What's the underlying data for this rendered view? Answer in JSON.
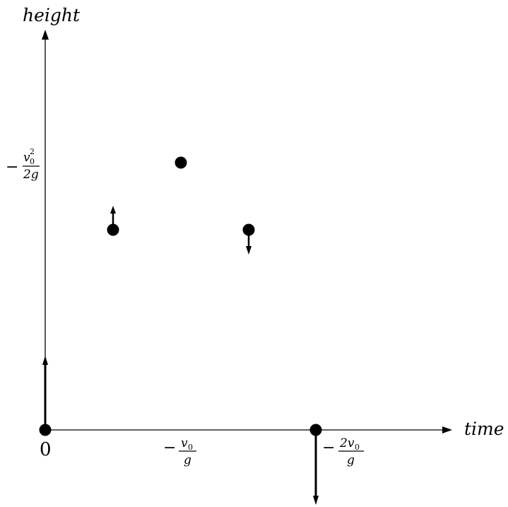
{
  "diagram": {
    "y_axis_label": "height",
    "x_axis_label": "time",
    "origin_label": "0",
    "tick_max_height": {
      "sign": "−",
      "num": "v",
      "num_sub": "0",
      "num_sup": "2",
      "den": "2g"
    },
    "tick_half_time": {
      "sign": "−",
      "num": "v",
      "num_sub": "0",
      "den": "g"
    },
    "tick_full_time": {
      "sign": "−",
      "num": "2v",
      "num_sub": "0",
      "den": "g"
    }
  },
  "colors": {
    "ink": "#000000",
    "background": "#ffffff"
  }
}
